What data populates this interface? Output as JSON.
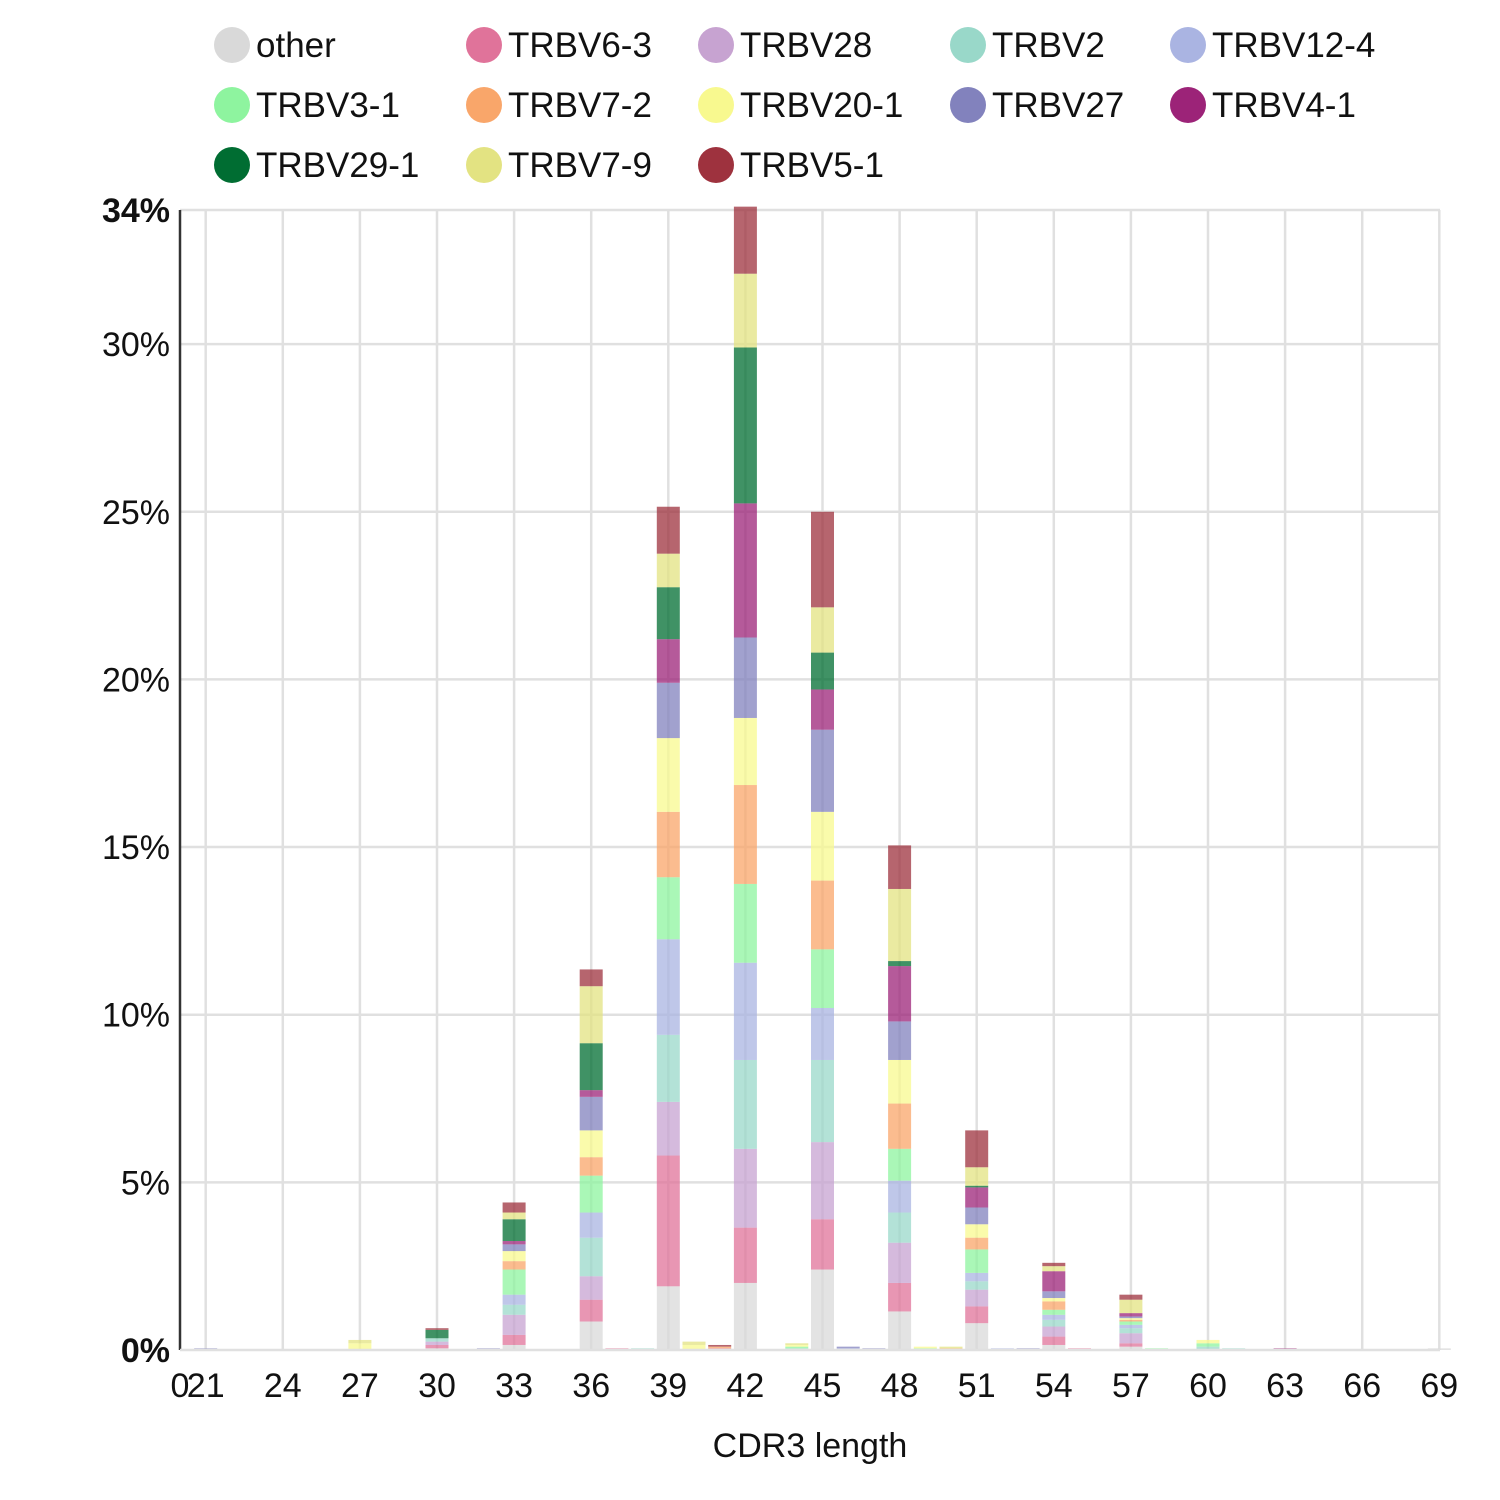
{
  "chart_data": {
    "type": "bar",
    "stacked": true,
    "title": "",
    "xlabel": "CDR3 length",
    "ylabel": "",
    "xlim": [
      20,
      70
    ],
    "ylim": [
      0,
      34
    ],
    "x_ticks": [
      "0",
      "21",
      "24",
      "27",
      "30",
      "33",
      "36",
      "39",
      "42",
      "45",
      "48",
      "51",
      "54",
      "57",
      "60",
      "63",
      "66",
      "69"
    ],
    "y_ticks": [
      "0%",
      "5%",
      "10%",
      "15%",
      "20%",
      "25%",
      "30%",
      "34%"
    ],
    "grid": true,
    "legend_position": "top",
    "series": [
      {
        "name": "other",
        "color": "#d9d9d9"
      },
      {
        "name": "TRBV6-3",
        "color": "#e0739a"
      },
      {
        "name": "TRBV28",
        "color": "#c7a3d1"
      },
      {
        "name": "TRBV2",
        "color": "#99d8c9"
      },
      {
        "name": "TRBV12-4",
        "color": "#aab4e2"
      },
      {
        "name": "TRBV3-1",
        "color": "#8ef49f"
      },
      {
        "name": "TRBV7-2",
        "color": "#f9a66a"
      },
      {
        "name": "TRBV20-1",
        "color": "#f8f98f"
      },
      {
        "name": "TRBV27",
        "color": "#8282bd"
      },
      {
        "name": "TRBV4-1",
        "color": "#9c2378"
      },
      {
        "name": "TRBV29-1",
        "color": "#006d32"
      },
      {
        "name": "TRBV7-9",
        "color": "#e3e382"
      },
      {
        "name": "TRBV5-1",
        "color": "#9e323e"
      }
    ],
    "bars": [
      {
        "x": 21,
        "values": [
          0.0,
          0.0,
          0.0,
          0.0,
          0.0,
          0.0,
          0.0,
          0.0,
          0.05,
          0.0,
          0.0,
          0.0,
          0.0
        ]
      },
      {
        "x": 27,
        "values": [
          0.0,
          0.0,
          0.0,
          0.0,
          0.0,
          0.0,
          0.0,
          0.2,
          0.0,
          0.0,
          0.0,
          0.1,
          0.0
        ]
      },
      {
        "x": 30,
        "values": [
          0.05,
          0.1,
          0.1,
          0.1,
          0.0,
          0.0,
          0.0,
          0.0,
          0.0,
          0.0,
          0.25,
          0.0,
          0.05
        ]
      },
      {
        "x": 32,
        "values": [
          0.0,
          0.0,
          0.0,
          0.0,
          0.0,
          0.0,
          0.0,
          0.0,
          0.05,
          0.0,
          0.0,
          0.0,
          0.0
        ]
      },
      {
        "x": 33,
        "values": [
          0.15,
          0.3,
          0.6,
          0.3,
          0.3,
          0.75,
          0.25,
          0.3,
          0.2,
          0.1,
          0.65,
          0.2,
          0.3
        ]
      },
      {
        "x": 36,
        "values": [
          0.85,
          0.65,
          0.7,
          1.15,
          0.75,
          1.1,
          0.55,
          0.8,
          1.0,
          0.2,
          1.4,
          1.7,
          0.5
        ]
      },
      {
        "x": 37,
        "values": [
          0.0,
          0.05,
          0.0,
          0.0,
          0.0,
          0.0,
          0.0,
          0.0,
          0.0,
          0.0,
          0.0,
          0.0,
          0.0
        ]
      },
      {
        "x": 38,
        "values": [
          0.0,
          0.0,
          0.0,
          0.05,
          0.0,
          0.0,
          0.0,
          0.0,
          0.0,
          0.0,
          0.0,
          0.0,
          0.0
        ]
      },
      {
        "x": 39,
        "values": [
          1.9,
          3.9,
          1.6,
          2.0,
          2.85,
          1.85,
          1.95,
          2.2,
          1.65,
          1.3,
          1.55,
          1.0,
          1.4
        ]
      },
      {
        "x": 40,
        "values": [
          0.0,
          0.0,
          0.0,
          0.0,
          0.0,
          0.0,
          0.0,
          0.15,
          0.0,
          0.0,
          0.0,
          0.1,
          0.0
        ]
      },
      {
        "x": 41,
        "values": [
          0.0,
          0.05,
          0.0,
          0.0,
          0.0,
          0.0,
          0.05,
          0.0,
          0.0,
          0.0,
          0.0,
          0.0,
          0.05
        ]
      },
      {
        "x": 42,
        "values": [
          2.0,
          1.65,
          2.35,
          2.65,
          2.9,
          2.35,
          2.95,
          2.0,
          2.4,
          4.0,
          4.65,
          2.2,
          2.0
        ]
      },
      {
        "x": 44,
        "values": [
          0.0,
          0.0,
          0.0,
          0.05,
          0.0,
          0.05,
          0.0,
          0.05,
          0.0,
          0.0,
          0.0,
          0.05,
          0.0
        ]
      },
      {
        "x": 45,
        "values": [
          2.4,
          1.5,
          2.3,
          2.45,
          1.55,
          1.75,
          2.05,
          2.05,
          2.45,
          1.2,
          1.1,
          1.35,
          2.85
        ]
      },
      {
        "x": 46,
        "values": [
          0.0,
          0.0,
          0.0,
          0.0,
          0.05,
          0.0,
          0.0,
          0.0,
          0.05,
          0.0,
          0.0,
          0.0,
          0.0
        ]
      },
      {
        "x": 47,
        "values": [
          0.0,
          0.0,
          0.0,
          0.0,
          0.0,
          0.0,
          0.0,
          0.0,
          0.05,
          0.0,
          0.0,
          0.0,
          0.0
        ]
      },
      {
        "x": 48,
        "values": [
          1.15,
          0.85,
          1.2,
          0.9,
          0.95,
          0.95,
          1.35,
          1.3,
          1.15,
          1.65,
          0.15,
          2.15,
          1.3
        ]
      },
      {
        "x": 49,
        "values": [
          0.0,
          0.0,
          0.0,
          0.0,
          0.0,
          0.05,
          0.0,
          0.05,
          0.0,
          0.0,
          0.0,
          0.0,
          0.0
        ]
      },
      {
        "x": 50,
        "values": [
          0.0,
          0.0,
          0.0,
          0.0,
          0.0,
          0.0,
          0.05,
          0.0,
          0.0,
          0.0,
          0.0,
          0.05,
          0.0
        ]
      },
      {
        "x": 51,
        "values": [
          0.8,
          0.5,
          0.5,
          0.25,
          0.25,
          0.7,
          0.35,
          0.4,
          0.5,
          0.6,
          0.05,
          0.55,
          1.1
        ]
      },
      {
        "x": 52,
        "values": [
          0.0,
          0.0,
          0.0,
          0.0,
          0.05,
          0.0,
          0.0,
          0.0,
          0.0,
          0.0,
          0.0,
          0.0,
          0.0
        ]
      },
      {
        "x": 53,
        "values": [
          0.0,
          0.0,
          0.0,
          0.0,
          0.0,
          0.0,
          0.0,
          0.0,
          0.05,
          0.0,
          0.0,
          0.0,
          0.0
        ]
      },
      {
        "x": 54,
        "values": [
          0.15,
          0.25,
          0.3,
          0.2,
          0.15,
          0.15,
          0.25,
          0.1,
          0.2,
          0.6,
          0.0,
          0.15,
          0.1
        ]
      },
      {
        "x": 55,
        "values": [
          0.0,
          0.05,
          0.0,
          0.0,
          0.0,
          0.0,
          0.0,
          0.0,
          0.0,
          0.0,
          0.0,
          0.0,
          0.0
        ]
      },
      {
        "x": 57,
        "values": [
          0.1,
          0.1,
          0.3,
          0.15,
          0.1,
          0.1,
          0.05,
          0.05,
          0.05,
          0.1,
          0.0,
          0.4,
          0.15
        ]
      },
      {
        "x": 58,
        "values": [
          0.0,
          0.0,
          0.0,
          0.0,
          0.0,
          0.05,
          0.0,
          0.0,
          0.0,
          0.0,
          0.0,
          0.0,
          0.0
        ]
      },
      {
        "x": 60,
        "values": [
          0.0,
          0.0,
          0.0,
          0.1,
          0.0,
          0.1,
          0.0,
          0.1,
          0.0,
          0.0,
          0.0,
          0.0,
          0.0
        ]
      },
      {
        "x": 61,
        "values": [
          0.0,
          0.0,
          0.0,
          0.05,
          0.0,
          0.0,
          0.0,
          0.0,
          0.0,
          0.0,
          0.0,
          0.0,
          0.0
        ]
      },
      {
        "x": 63,
        "values": [
          0.0,
          0.0,
          0.0,
          0.0,
          0.0,
          0.0,
          0.0,
          0.0,
          0.0,
          0.05,
          0.0,
          0.0,
          0.0
        ]
      },
      {
        "x": 69,
        "values": [
          0.05,
          0.0,
          0.0,
          0.0,
          0.0,
          0.0,
          0.0,
          0.0,
          0.0,
          0.0,
          0.0,
          0.0,
          0.0
        ]
      }
    ]
  }
}
